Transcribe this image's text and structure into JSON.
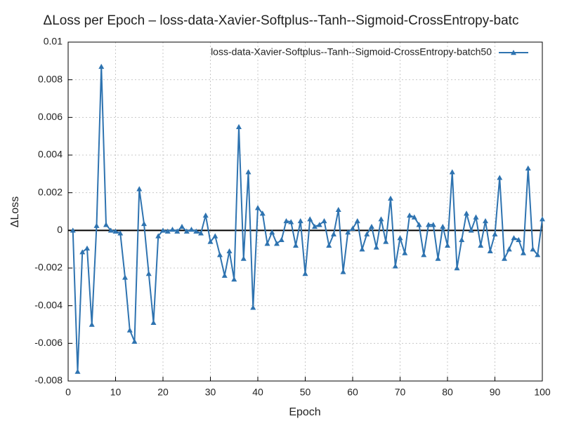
{
  "chart_data": {
    "type": "line",
    "title": "ΔLoss per Epoch – loss-data-Xavier-Softplus--Tanh--Sigmoid-CrossEntropy-batc",
    "x_label": "Epoch",
    "y_label": "ΔLoss",
    "x": [
      1,
      2,
      3,
      4,
      5,
      6,
      7,
      8,
      9,
      10,
      11,
      12,
      13,
      14,
      15,
      16,
      17,
      18,
      19,
      20,
      21,
      22,
      23,
      24,
      25,
      26,
      27,
      28,
      29,
      30,
      31,
      32,
      33,
      34,
      35,
      36,
      37,
      38,
      39,
      40,
      41,
      42,
      43,
      44,
      45,
      46,
      47,
      48,
      49,
      50,
      51,
      52,
      53,
      54,
      55,
      56,
      57,
      58,
      59,
      60,
      61,
      62,
      63,
      64,
      65,
      66,
      67,
      68,
      69,
      70,
      71,
      72,
      73,
      74,
      75,
      76,
      77,
      78,
      79,
      80,
      81,
      82,
      83,
      84,
      85,
      86,
      87,
      88,
      89,
      90,
      91,
      92,
      93,
      94,
      95,
      96,
      97,
      98,
      99,
      100
    ],
    "series": [
      {
        "name": "loss-data-Xavier-Softplus--Tanh--Sigmoid-CrossEntropy-batch50",
        "color": "#2e73b0",
        "values": [
          0.0,
          -0.0075,
          -0.00115,
          -0.00095,
          -0.005,
          0.00025,
          0.0087,
          0.0003,
          0.0,
          -5e-05,
          -0.00015,
          -0.0025,
          -0.0053,
          -0.0059,
          0.0022,
          0.00035,
          -0.0023,
          -0.0049,
          -0.0003,
          0.0,
          -5e-05,
          5e-05,
          -5e-05,
          0.0002,
          -5e-05,
          5e-05,
          -5e-05,
          -0.00015,
          0.0008,
          -0.0006,
          -0.0003,
          -0.0013,
          -0.0024,
          -0.0011,
          -0.0026,
          0.0055,
          -0.0015,
          0.0031,
          -0.0041,
          0.0012,
          0.0009,
          -0.0007,
          -0.0001,
          -0.0007,
          -0.0005,
          0.0005,
          0.00045,
          -0.0008,
          0.0005,
          -0.0023,
          0.0006,
          0.0002,
          0.0003,
          0.0005,
          -0.0008,
          -0.0002,
          0.0011,
          -0.0022,
          -0.0001,
          0.0001,
          0.0005,
          -0.001,
          -0.0002,
          0.0002,
          -0.0009,
          0.0006,
          -0.0006,
          0.0017,
          -0.0019,
          -0.0004,
          -0.0012,
          0.0008,
          0.0007,
          0.0003,
          -0.0013,
          0.0003,
          0.0003,
          -0.0015,
          0.0002,
          -0.0008,
          0.0031,
          -0.002,
          -0.0005,
          0.0009,
          0.0,
          0.0007,
          -0.0008,
          0.0005,
          -0.0011,
          -0.0002,
          0.0028,
          -0.0015,
          -0.001,
          -0.0004,
          -0.0005,
          -0.0012,
          0.0033,
          -0.001,
          -0.0013,
          0.0006
        ]
      }
    ],
    "xlim": [
      0,
      100
    ],
    "xticks": [
      0,
      10,
      20,
      30,
      40,
      50,
      60,
      70,
      80,
      90,
      100
    ],
    "ylim": [
      -0.008,
      0.01
    ],
    "yticks": [
      -0.008,
      -0.006,
      -0.004,
      -0.002,
      0,
      0.002,
      0.004,
      0.006,
      0.008,
      0.01
    ],
    "grid": true,
    "legend": "top-right"
  }
}
